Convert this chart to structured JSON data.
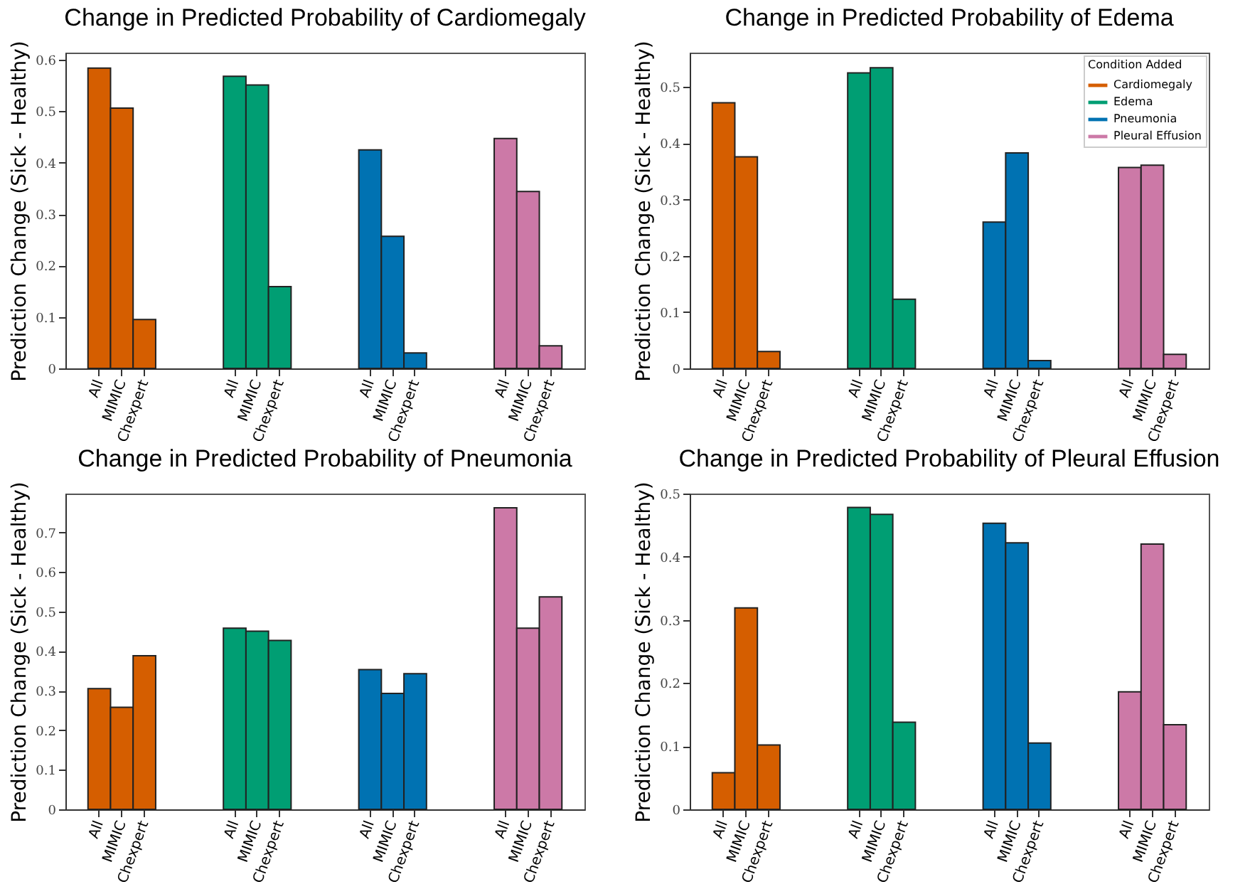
{
  "chart_data": [
    {
      "type": "bar",
      "title": "Change in Predicted Probability of Cardiomegaly",
      "ylabel": "Prediction Change (Sick - Healthy)",
      "categories": [
        "All",
        "MIMIC",
        "Chexpert",
        null,
        null,
        null,
        "All",
        "MIMIC",
        "Chexpert",
        null,
        null,
        null,
        "All",
        "MIMIC",
        "Chexpert",
        null,
        null,
        null,
        "All",
        "MIMIC",
        "Chexpert"
      ],
      "series": [
        {
          "color": "#d55e00",
          "values": [
            0.584,
            0.506,
            0.095,
            null,
            null,
            null,
            null,
            null,
            null,
            null,
            null,
            null,
            null,
            null,
            null,
            null,
            null,
            null,
            null,
            null,
            null
          ]
        },
        {
          "color": "#009e73",
          "values": [
            null,
            null,
            null,
            null,
            null,
            null,
            0.568,
            0.551,
            0.159,
            null,
            null,
            null,
            null,
            null,
            null,
            null,
            null,
            null,
            null,
            null,
            null
          ]
        },
        {
          "color": "#0072b2",
          "values": [
            null,
            null,
            null,
            null,
            null,
            null,
            null,
            null,
            null,
            null,
            null,
            null,
            0.425,
            0.257,
            0.03,
            null,
            null,
            null,
            null,
            null,
            null
          ]
        },
        {
          "color": "#cc79a7",
          "values": [
            null,
            null,
            null,
            null,
            null,
            null,
            null,
            null,
            null,
            null,
            null,
            null,
            null,
            null,
            null,
            null,
            null,
            null,
            0.447,
            0.344,
            0.044
          ]
        }
      ],
      "ylim": [
        0,
        0.614
      ],
      "yticks": [
        0.0,
        0.1,
        0.2,
        0.3,
        0.4,
        0.5,
        0.6
      ],
      "grid": false,
      "legend": false
    },
    {
      "type": "bar",
      "title": "Change in Predicted Probability of Edema",
      "ylabel": "Prediction Change (Sick - Healthy)",
      "legend_title": "Condition Added",
      "categories": [
        "All",
        "MIMIC",
        "Chexpert",
        null,
        null,
        null,
        "All",
        "MIMIC",
        "Chexpert",
        null,
        null,
        null,
        "All",
        "MIMIC",
        "Chexpert",
        null,
        null,
        null,
        "All",
        "MIMIC",
        "Chexpert"
      ],
      "series": [
        {
          "name": "Cardiomegaly",
          "color": "#d55e00",
          "values": [
            0.472,
            0.376,
            0.03,
            null,
            null,
            null,
            null,
            null,
            null,
            null,
            null,
            null,
            null,
            null,
            null,
            null,
            null,
            null,
            null,
            null,
            null
          ]
        },
        {
          "name": "Edema",
          "color": "#009e73",
          "values": [
            null,
            null,
            null,
            null,
            null,
            null,
            0.525,
            0.534,
            0.123,
            null,
            null,
            null,
            null,
            null,
            null,
            null,
            null,
            null,
            null,
            null,
            null
          ]
        },
        {
          "name": "Pneumonia",
          "color": "#0072b2",
          "values": [
            null,
            null,
            null,
            null,
            null,
            null,
            null,
            null,
            null,
            null,
            null,
            null,
            0.26,
            0.383,
            0.014,
            null,
            null,
            null,
            null,
            null,
            null
          ]
        },
        {
          "name": "Pleural Effusion",
          "color": "#cc79a7",
          "values": [
            null,
            null,
            null,
            null,
            null,
            null,
            null,
            null,
            null,
            null,
            null,
            null,
            null,
            null,
            null,
            null,
            null,
            null,
            0.357,
            0.361,
            0.025
          ]
        }
      ],
      "ylim": [
        0,
        0.561
      ],
      "yticks": [
        0.0,
        0.1,
        0.2,
        0.3,
        0.4,
        0.5
      ],
      "grid": false,
      "legend": "top right"
    },
    {
      "type": "bar",
      "title": "Change in Predicted Probability of Pneumonia",
      "ylabel": "Prediction Change (Sick - Healthy)",
      "categories": [
        "All",
        "MIMIC",
        "Chexpert",
        null,
        null,
        null,
        "All",
        "MIMIC",
        "Chexpert",
        null,
        null,
        null,
        "All",
        "MIMIC",
        "Chexpert",
        null,
        null,
        null,
        "All",
        "MIMIC",
        "Chexpert"
      ],
      "series": [
        {
          "color": "#d55e00",
          "values": [
            0.305,
            0.258,
            0.388,
            null,
            null,
            null,
            null,
            null,
            null,
            null,
            null,
            null,
            null,
            null,
            null,
            null,
            null,
            null,
            null,
            null,
            null
          ]
        },
        {
          "color": "#009e73",
          "values": [
            null,
            null,
            null,
            null,
            null,
            null,
            0.458,
            0.45,
            0.427,
            null,
            null,
            null,
            null,
            null,
            null,
            null,
            null,
            null,
            null,
            null,
            null
          ]
        },
        {
          "color": "#0072b2",
          "values": [
            null,
            null,
            null,
            null,
            null,
            null,
            null,
            null,
            null,
            null,
            null,
            null,
            0.353,
            0.293,
            0.343,
            null,
            null,
            null,
            null,
            null,
            null
          ]
        },
        {
          "color": "#cc79a7",
          "values": [
            null,
            null,
            null,
            null,
            null,
            null,
            null,
            null,
            null,
            null,
            null,
            null,
            null,
            null,
            null,
            null,
            null,
            null,
            0.762,
            0.458,
            0.537
          ]
        }
      ],
      "ylim": [
        0,
        0.798
      ],
      "yticks": [
        0.0,
        0.1,
        0.2,
        0.3,
        0.4,
        0.5,
        0.6,
        0.7
      ],
      "grid": false,
      "legend": false
    },
    {
      "type": "bar",
      "title": "Change in Predicted Probability of Pleural Effusion",
      "ylabel": "Prediction Change (Sick - Healthy)",
      "categories": [
        "All",
        "MIMIC",
        "Chexpert",
        null,
        null,
        null,
        "All",
        "MIMIC",
        "Chexpert",
        null,
        null,
        null,
        "All",
        "MIMIC",
        "Chexpert",
        null,
        null,
        null,
        "All",
        "MIMIC",
        "Chexpert"
      ],
      "series": [
        {
          "color": "#d55e00",
          "values": [
            0.058,
            0.319,
            0.102,
            null,
            null,
            null,
            null,
            null,
            null,
            null,
            null,
            null,
            null,
            null,
            null,
            null,
            null,
            null,
            null,
            null,
            null
          ]
        },
        {
          "color": "#009e73",
          "values": [
            null,
            null,
            null,
            null,
            null,
            null,
            0.478,
            0.467,
            0.138,
            null,
            null,
            null,
            null,
            null,
            null,
            null,
            null,
            null,
            null,
            null,
            null
          ]
        },
        {
          "color": "#0072b2",
          "values": [
            null,
            null,
            null,
            null,
            null,
            null,
            null,
            null,
            null,
            null,
            null,
            null,
            0.453,
            0.422,
            0.105,
            null,
            null,
            null,
            null,
            null,
            null
          ]
        },
        {
          "color": "#cc79a7",
          "values": [
            null,
            null,
            null,
            null,
            null,
            null,
            null,
            null,
            null,
            null,
            null,
            null,
            null,
            null,
            null,
            null,
            null,
            null,
            0.186,
            0.42,
            0.134
          ]
        }
      ],
      "ylim": [
        0,
        0.5
      ],
      "yticks": [
        0.0,
        0.1,
        0.2,
        0.3,
        0.4,
        0.5
      ],
      "grid": false,
      "legend": false
    }
  ]
}
